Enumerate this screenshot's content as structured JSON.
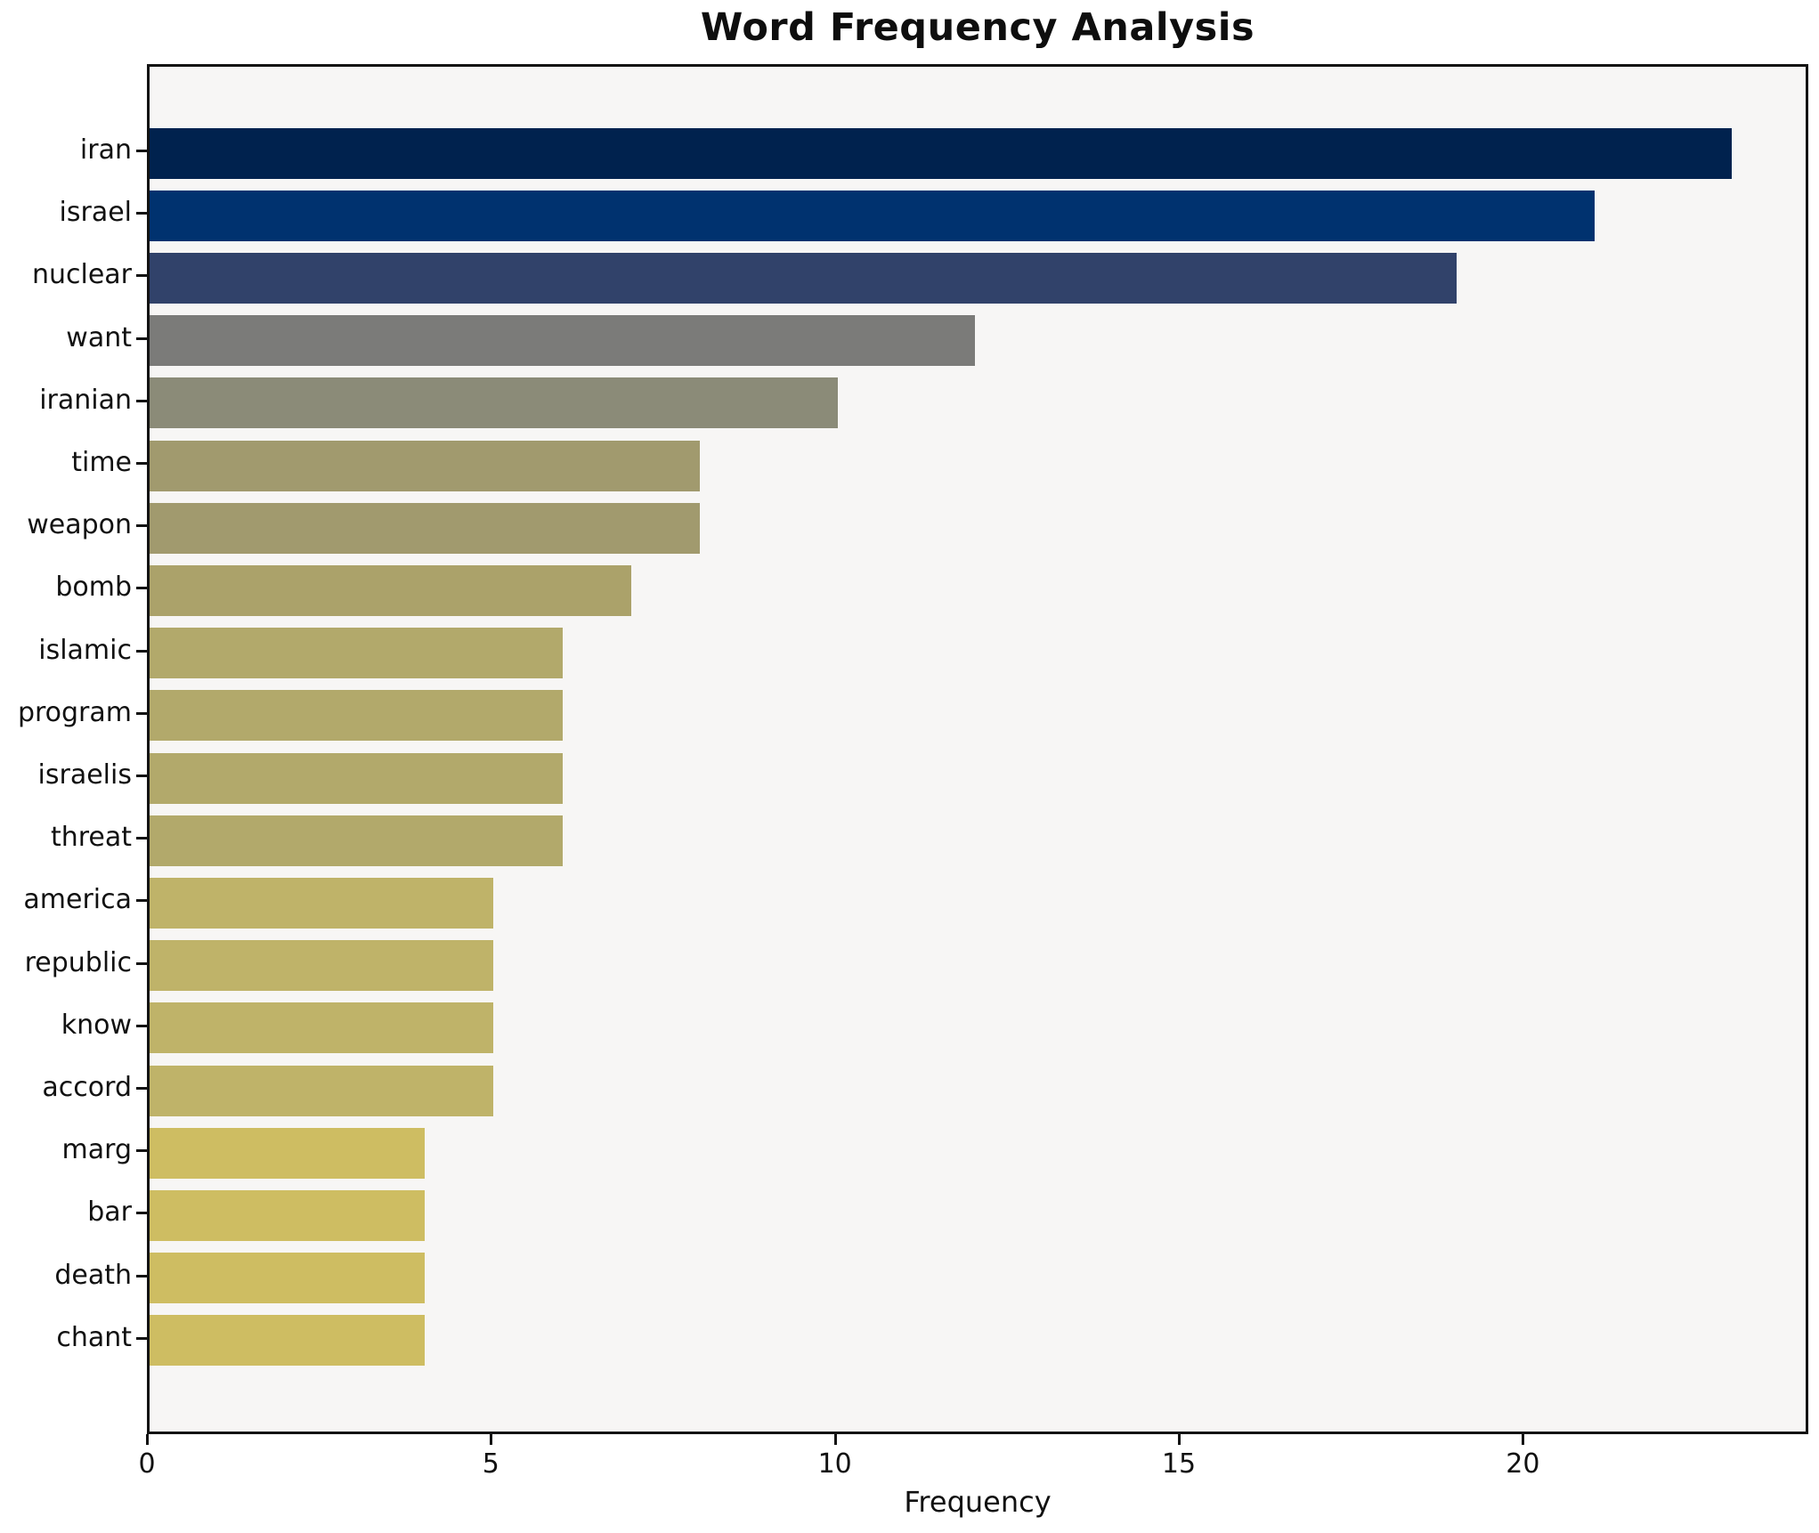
{
  "chart_data": {
    "type": "bar",
    "orientation": "horizontal",
    "title": "Word Frequency Analysis",
    "xlabel": "Frequency",
    "ylabel": "",
    "categories": [
      "iran",
      "israel",
      "nuclear",
      "want",
      "iranian",
      "time",
      "weapon",
      "bomb",
      "islamic",
      "program",
      "israelis",
      "threat",
      "america",
      "republic",
      "know",
      "accord",
      "marg",
      "bar",
      "death",
      "chant"
    ],
    "values": [
      23,
      21,
      19,
      12,
      10,
      8,
      8,
      7,
      6,
      6,
      6,
      6,
      5,
      5,
      5,
      5,
      4,
      4,
      4,
      4
    ],
    "bar_colors": [
      "#00224e",
      "#00326f",
      "#31426a",
      "#7b7b79",
      "#8b8b78",
      "#a19a6e",
      "#a19a6e",
      "#aba26a",
      "#b2a96b",
      "#b2a96b",
      "#b2a96b",
      "#b2a96b",
      "#bfb369",
      "#bfb369",
      "#bfb369",
      "#bfb369",
      "#cebd62",
      "#cebd62",
      "#cebd62",
      "#cebd62"
    ],
    "x_ticks": [
      0,
      5,
      10,
      15,
      20
    ],
    "xlim": [
      0,
      24.15
    ],
    "colormap": "cividis",
    "plot_background": "#f7f6f5",
    "figure_background": "#ffffff",
    "grid": false,
    "legend": false
  }
}
